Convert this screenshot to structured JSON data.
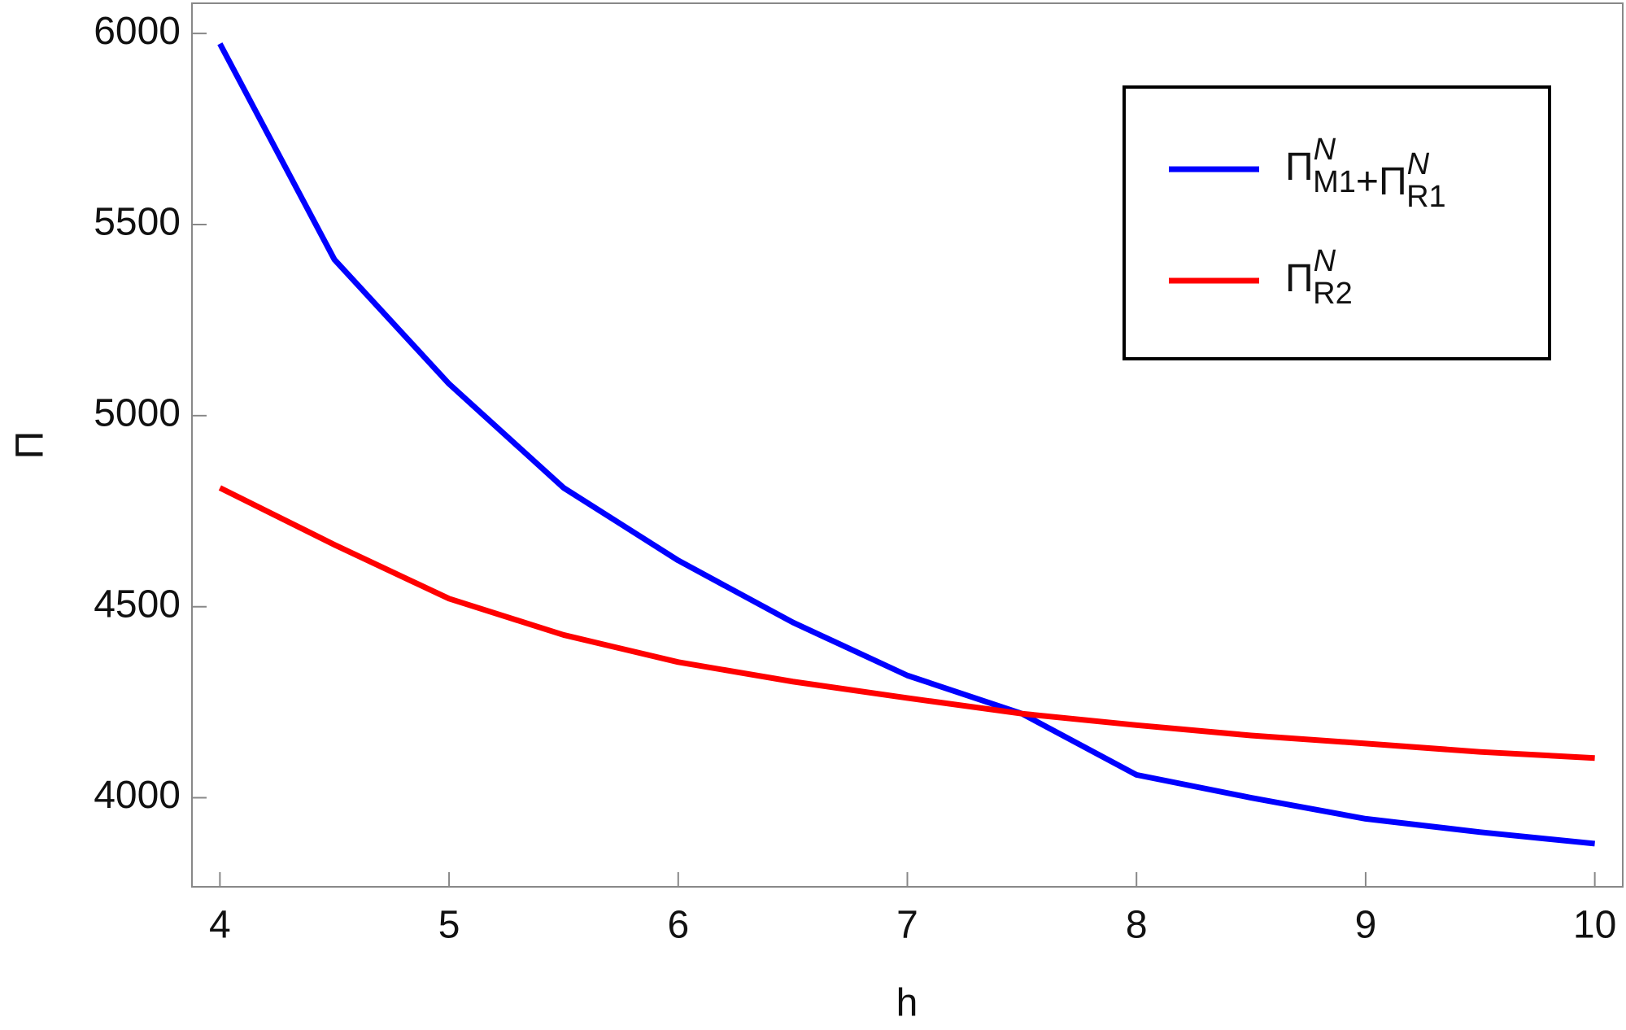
{
  "chart_data": {
    "type": "line",
    "x_label": "h",
    "y_label": "Π",
    "x": [
      4,
      4.5,
      5,
      5.5,
      6,
      6.5,
      7,
      7.5,
      8,
      8.5,
      9,
      9.5,
      10
    ],
    "series": [
      {
        "name": "Π^N_M1+Π^N_R1",
        "color": "#0000ff",
        "values": [
          5973,
          5408,
          5083,
          4811,
          4621,
          4459,
          4320,
          4220,
          4060,
          4000,
          3945,
          3910,
          3880
        ]
      },
      {
        "name": "Π^N_R2",
        "color": "#ff0000",
        "values": [
          4811,
          4662,
          4521,
          4426,
          4355,
          4304,
          4261,
          4220,
          4190,
          4163,
          4142,
          4120,
          4104
        ]
      }
    ],
    "xlim": [
      3.878,
      10.122
    ],
    "ylim": [
      3767,
      6079
    ],
    "xticks": [
      4,
      5,
      6,
      7,
      8,
      9,
      10
    ],
    "yticks": [
      4000,
      4500,
      5000,
      5500,
      6000
    ],
    "legend": "top-right"
  }
}
